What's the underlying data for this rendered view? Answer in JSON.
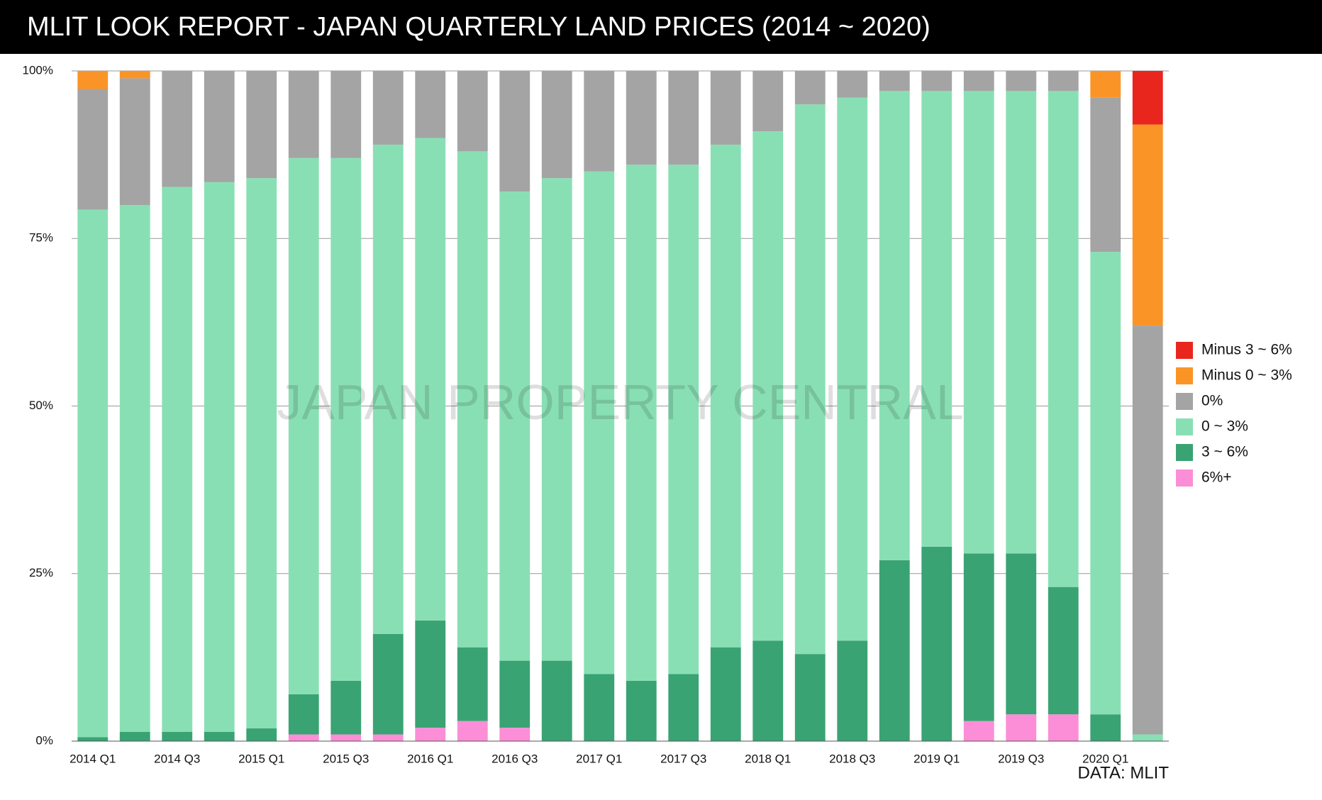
{
  "chart_data": {
    "type": "stacked_bar",
    "title": "MLIT LOOK REPORT - JAPAN QUARTERLY LAND PRICES (2014 ~ 2020)",
    "watermark": "JAPAN PROPERTY CENTRAL",
    "source": "DATA: MLIT",
    "categories": [
      "2014 Q1",
      null,
      "2014 Q3",
      null,
      "2015 Q1",
      null,
      "2015 Q3",
      null,
      "2016 Q1",
      null,
      "2016 Q3",
      null,
      "2017 Q1",
      null,
      "2017 Q3",
      null,
      "2018 Q1",
      null,
      "2018 Q3",
      null,
      "2019 Q1",
      null,
      "2019 Q3",
      null,
      "2020 Q1",
      null
    ],
    "series": [
      {
        "name": "6%+",
        "color": "#fb8ed7",
        "values": [
          0,
          0,
          0,
          0,
          0,
          1,
          1,
          1,
          2,
          3,
          2,
          0,
          0,
          0,
          0,
          0,
          0,
          0,
          0,
          0,
          0,
          3,
          4,
          4,
          0,
          0
        ]
      },
      {
        "name": "3 ~ 6%",
        "color": "#3aa373",
        "values": [
          0.6,
          1.4,
          1.4,
          1.4,
          1.9,
          6,
          8,
          15,
          16,
          11,
          10,
          12,
          10,
          9,
          10,
          14,
          15,
          13,
          15,
          27,
          29,
          25,
          24,
          19,
          4,
          0
        ]
      },
      {
        "name": "0 ~ 3%",
        "color": "#89dfb4",
        "values": [
          78.7,
          78.6,
          81.3,
          82,
          82.1,
          80,
          78,
          73,
          72,
          74,
          70,
          72,
          75,
          77,
          76,
          75,
          76,
          82,
          81,
          70,
          68,
          69,
          69,
          74,
          69,
          1
        ]
      },
      {
        "name": "0%",
        "color": "#a4a4a4",
        "values": [
          18,
          18.9,
          17.3,
          16.6,
          16,
          13,
          13,
          11,
          10,
          12,
          18,
          16,
          15,
          14,
          14,
          11,
          9,
          5,
          4,
          3,
          3,
          3,
          3,
          3,
          23,
          61
        ]
      },
      {
        "name": "Minus 0 ~ 3%",
        "color": "#fb9426",
        "values": [
          2.7,
          1.1,
          0,
          0,
          0,
          0,
          0,
          0,
          0,
          0,
          0,
          0,
          0,
          0,
          0,
          0,
          0,
          0,
          0,
          0,
          0,
          0,
          0,
          0,
          4,
          30
        ]
      },
      {
        "name": "Minus 3 ~ 6%",
        "color": "#e8261e",
        "values": [
          0,
          0,
          0,
          0,
          0,
          0,
          0,
          0,
          0,
          0,
          0,
          0,
          0,
          0,
          0,
          0,
          0,
          0,
          0,
          0,
          0,
          0,
          0,
          0,
          0,
          8
        ]
      }
    ],
    "ylim": [
      0,
      100
    ],
    "yticks": [
      {
        "value": 0,
        "label": "0%"
      },
      {
        "value": 25,
        "label": "25%"
      },
      {
        "value": 50,
        "label": "50%"
      },
      {
        "value": 75,
        "label": "75%"
      },
      {
        "value": 100,
        "label": "100%"
      }
    ],
    "grid": true,
    "legend": "right"
  }
}
